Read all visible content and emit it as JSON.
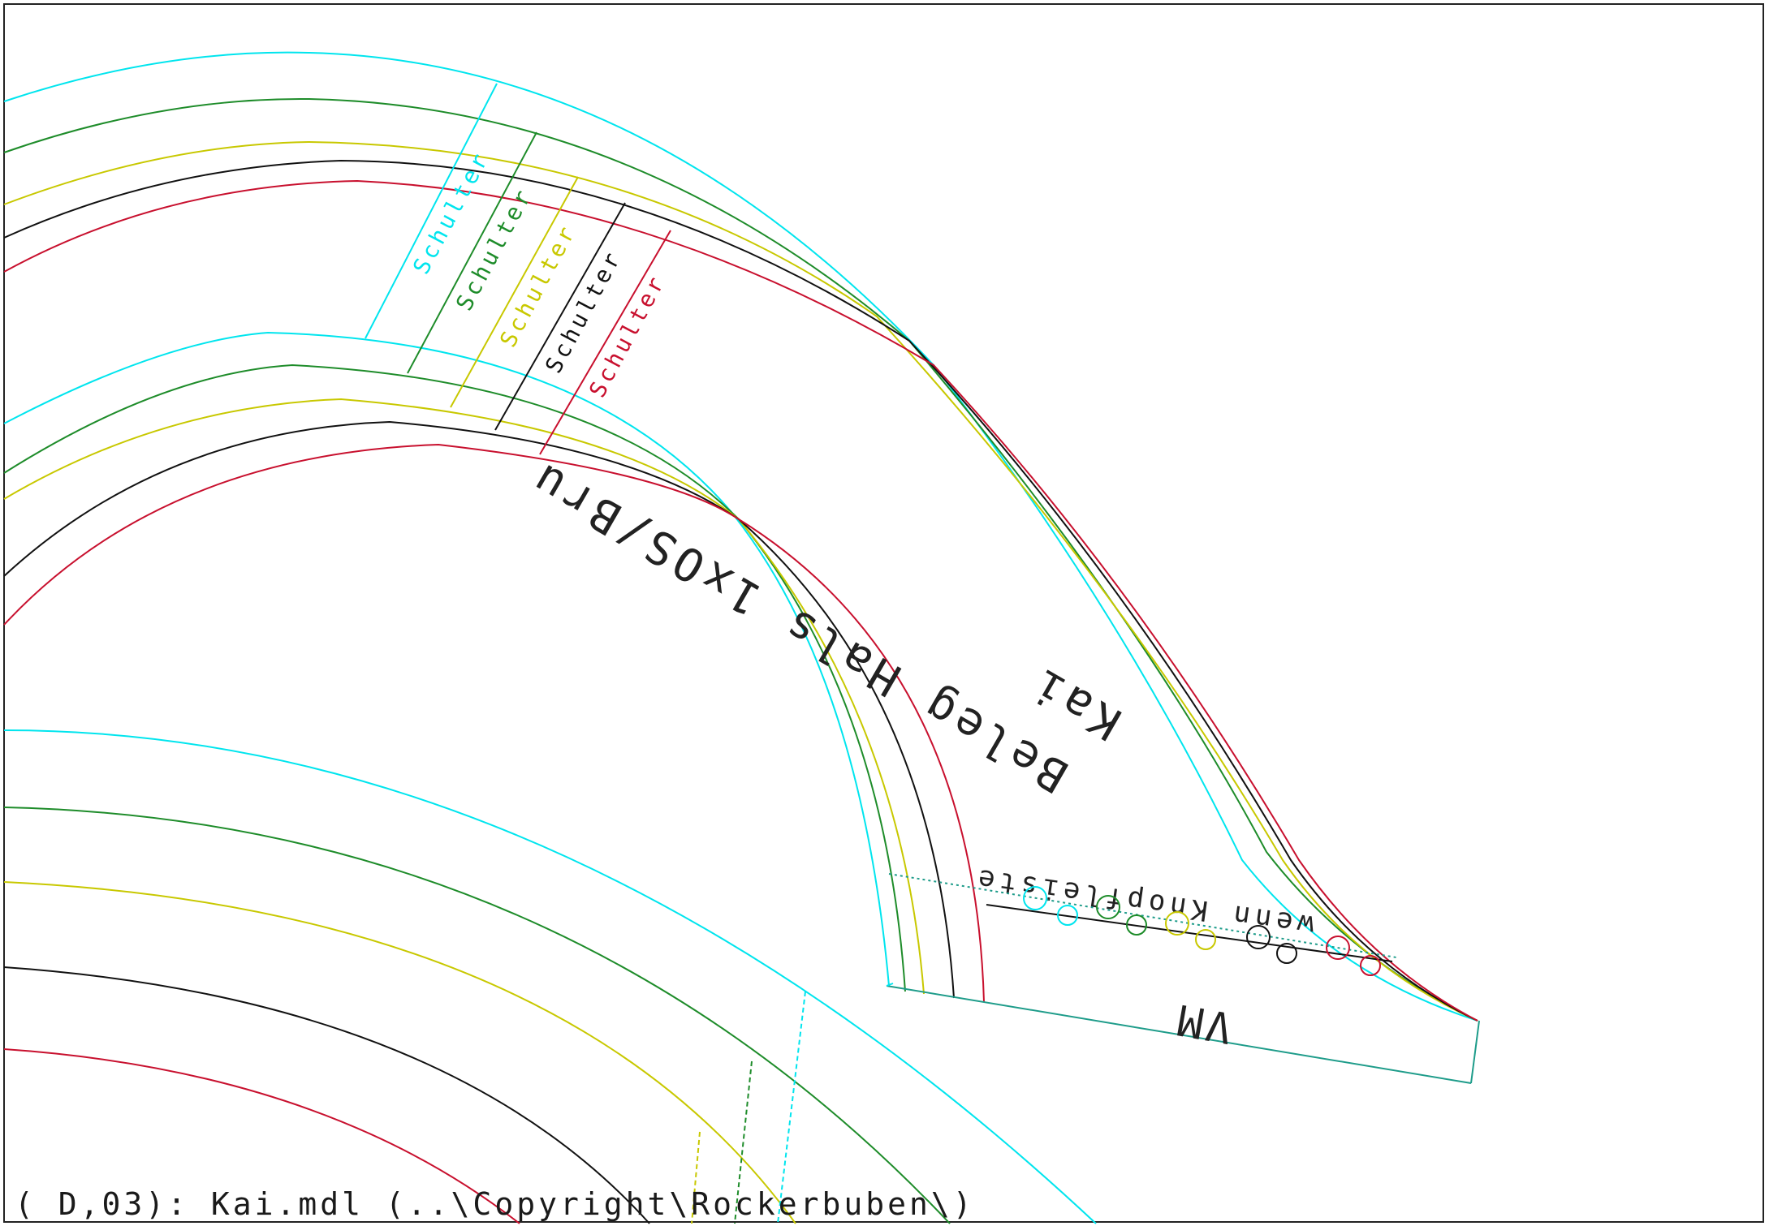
{
  "drawing": {
    "status_line": "( D,03): Kai.mdl (..\\Copyright\\Rockerbuben\\)",
    "piece_label_line1": "Beleg Hals 1xOS/Bru",
    "piece_label_line2": "Kai",
    "edge_label_vm": "VM",
    "button_placket_note": "wenn Knopfleiste",
    "shoulder_label": "Schulter"
  },
  "size_colors": {
    "cyan": "#00e5ee",
    "green": "#1e8c2a",
    "yellow": "#c8c800",
    "black": "#111111",
    "red": "#c8102e"
  },
  "size_order": [
    "cyan",
    "green",
    "yellow",
    "black",
    "red"
  ]
}
